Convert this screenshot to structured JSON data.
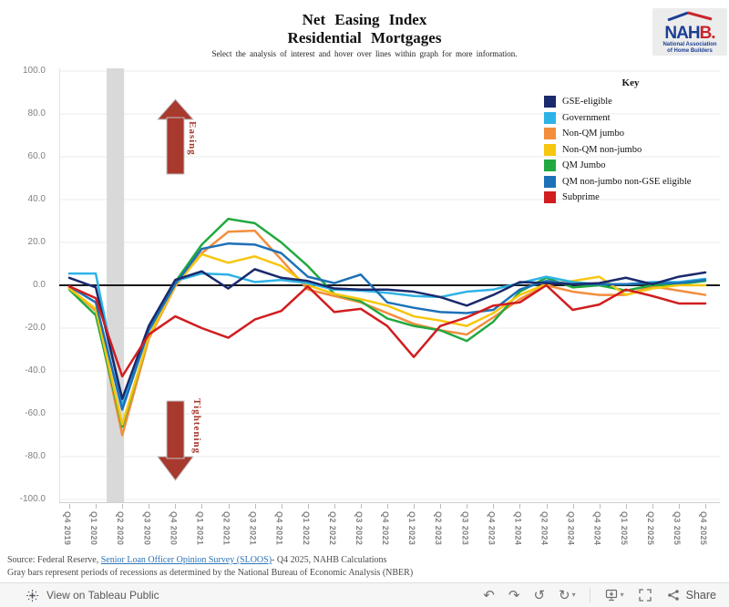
{
  "header": {
    "title_line1": "Net Easing Index",
    "title_line2": "Residential Mortgages",
    "subtitle": "Select the analysis of interest and hover over lines within graph for more information.",
    "logo": {
      "text_blue": "NAH",
      "text_red": "B.",
      "sub1": "National Association",
      "sub2": "of Home Builders"
    }
  },
  "legend": {
    "title": "Key",
    "items": [
      {
        "label": "GSE-eligible",
        "color": "#1a2a6c"
      },
      {
        "label": "Government",
        "color": "#2eb3e6"
      },
      {
        "label": "Non-QM jumbo",
        "color": "#f28e3c"
      },
      {
        "label": "Non-QM non-jumbo",
        "color": "#f7c60f"
      },
      {
        "label": "QM Jumbo",
        "color": "#21a93f"
      },
      {
        "label": "QM non-jumbo non-GSE eligible",
        "color": "#1d71b8"
      },
      {
        "label": "Subprime",
        "color": "#d11d1f"
      }
    ]
  },
  "chart_data": {
    "type": "line",
    "x": [
      "Q4 2019",
      "Q1 2020",
      "Q2 2020",
      "Q3 2020",
      "Q4 2020",
      "Q1 2021",
      "Q2 2021",
      "Q3 2021",
      "Q4 2021",
      "Q1 2022",
      "Q2 2022",
      "Q3 2022",
      "Q4 2022",
      "Q1 2023",
      "Q2 2023",
      "Q3 2023",
      "Q4 2023",
      "Q1 2024",
      "Q2 2024",
      "Q3 2024",
      "Q4 2024",
      "Q1 2025",
      "Q2 2025",
      "Q3 2025",
      "Q4 2025"
    ],
    "ylim": [
      -100,
      100
    ],
    "y_ticks": [
      "100.0",
      "80.0",
      "60.0",
      "40.0",
      "20.0",
      "0.0",
      "-20.0",
      "-40.0",
      "-60.0",
      "-80.0",
      "-100.0"
    ],
    "grid": true,
    "zero_line": true,
    "legend_position": "top-right",
    "recession_band": {
      "from": "Q1 2020",
      "to": "Q2 2020",
      "color": "#d9d9d9"
    },
    "annotations": [
      {
        "label": "Easing",
        "direction": "up",
        "color": "#a8392e"
      },
      {
        "label": "Tightening",
        "direction": "down",
        "color": "#a8392e"
      }
    ],
    "series": [
      {
        "name": "GSE-eligible",
        "color": "#1a2a6c",
        "values": [
          3.5,
          -1,
          -53,
          -19,
          2.5,
          6.5,
          -1.5,
          7.5,
          3.5,
          2,
          -1.5,
          -2,
          -2,
          -3,
          -5.5,
          -9.5,
          -4.5,
          1.5,
          1,
          0.5,
          1,
          3.5,
          0.5,
          4,
          6
        ]
      },
      {
        "name": "Government",
        "color": "#2eb3e6",
        "values": [
          5.5,
          5.5,
          -56,
          -20,
          2,
          5.5,
          5,
          1.5,
          2.5,
          1,
          -2,
          -2.5,
          -3.5,
          -5,
          -5.5,
          -3,
          -2,
          1,
          4,
          1.5,
          0.5,
          0.5,
          1.5,
          1.5,
          3
        ]
      },
      {
        "name": "Non-QM jumbo",
        "color": "#f28e3c",
        "values": [
          -1,
          -12,
          -70,
          -25,
          -0.5,
          15,
          25,
          25.5,
          12,
          -2,
          -5,
          -8,
          -13,
          -18,
          -21,
          -23,
          -15,
          -6.5,
          0,
          -3,
          -4.5,
          -4.5,
          -0.5,
          -2.5,
          -4.5
        ]
      },
      {
        "name": "Non-QM non-jumbo",
        "color": "#f7c60f",
        "values": [
          -1.5,
          -11,
          -65,
          -24,
          0,
          14.5,
          10.5,
          13.5,
          9,
          0,
          -4,
          -6.5,
          -9.5,
          -14.5,
          -16.5,
          -19,
          -13,
          -4.5,
          0.5,
          2,
          4,
          -4.5,
          -1.5,
          0,
          0
        ]
      },
      {
        "name": "QM Jumbo",
        "color": "#21a93f",
        "values": [
          -2,
          -14,
          -66,
          -24,
          1.5,
          19,
          31,
          29,
          20,
          9,
          -4,
          -7.5,
          -15.5,
          -19,
          -21,
          -26,
          -17,
          -3,
          3.5,
          -1,
          0,
          -2.5,
          0,
          0.5,
          2
        ]
      },
      {
        "name": "QM non-jumbo non-GSE eligible",
        "color": "#1d71b8",
        "values": [
          -0.5,
          -8,
          -58,
          -21,
          0.5,
          17,
          19.5,
          19,
          15,
          4,
          1,
          5,
          -8,
          -10.5,
          -12.5,
          -13,
          -11.5,
          -2,
          2,
          0.5,
          0.5,
          0.5,
          1,
          1,
          2.5
        ]
      },
      {
        "name": "Subprime",
        "color": "#d11d1f",
        "values": [
          -0.5,
          -6,
          -42.5,
          -23,
          -14.5,
          -20,
          -24.5,
          -16,
          -12,
          -0.5,
          -12.5,
          -11,
          -19,
          -33.5,
          -19,
          -15,
          -9.5,
          -8,
          0,
          -11.5,
          -9,
          -2,
          -5,
          -8.5,
          -8.5
        ]
      }
    ]
  },
  "footer": {
    "source_prefix": "Source: Federal Reserve, ",
    "source_link": "Senior Loan Officer Opinion Survey (SLOOS)",
    "source_suffix": "- Q4 2025, NAHB Calculations",
    "note": "Gray bars represent periods of recessions as determined by the National Bureau of Economic Analysis (NBER)"
  },
  "toolbar": {
    "view_label": "View on Tableau Public",
    "share_label": "Share",
    "icons": [
      "tableau-logo",
      "undo",
      "redo",
      "revert",
      "refresh",
      "download",
      "fullscreen",
      "share"
    ]
  }
}
